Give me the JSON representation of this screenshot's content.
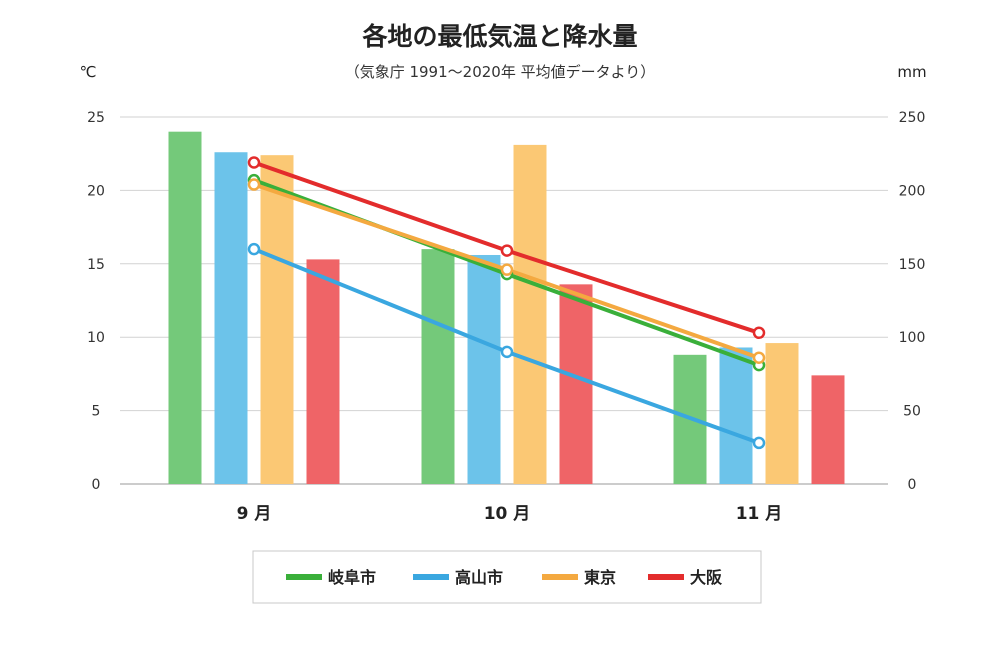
{
  "chart_data": {
    "type": "bar+line",
    "title": "各地の最低気温と降水量",
    "subtitle": "（気象庁 1991～2020年 平均値データより）",
    "left_unit": "℃",
    "right_unit": "mm",
    "categories": [
      "9 月",
      "10 月",
      "11 月"
    ],
    "left_axis": {
      "range": [
        0,
        25
      ],
      "ticks": [
        "0",
        "5",
        "10",
        "15",
        "20",
        "25"
      ]
    },
    "right_axis": {
      "range": [
        0,
        250
      ],
      "ticks": [
        "0",
        "50",
        "100",
        "150",
        "200",
        "250"
      ]
    },
    "legend": [
      "岐阜市",
      "高山市",
      "東京",
      "大阪"
    ],
    "series": [
      {
        "name": "岐阜市",
        "color": "#3aaf3a",
        "bar_color": "#74c97a",
        "temperature": [
          20.7,
          14.3,
          8.1
        ],
        "precipitation": [
          240,
          160,
          88
        ]
      },
      {
        "name": "高山市",
        "color": "#3aa7e0",
        "bar_color": "#6cc3ea",
        "temperature": [
          16.0,
          9.0,
          2.8
        ],
        "precipitation": [
          226,
          156,
          93
        ]
      },
      {
        "name": "東京",
        "color": "#f4a940",
        "bar_color": "#fbc874",
        "temperature": [
          20.4,
          14.6,
          8.6
        ],
        "precipitation": [
          224,
          231,
          96
        ]
      },
      {
        "name": "大阪",
        "color": "#e32c2c",
        "bar_color": "#ef6467",
        "temperature": [
          21.9,
          15.9,
          10.3
        ],
        "precipitation": [
          153,
          136,
          74
        ]
      }
    ],
    "bars_represent": "precipitation (right axis, mm)",
    "lines_represent": "minimum temperature (left axis, ℃)",
    "legend_position": "bottom"
  }
}
